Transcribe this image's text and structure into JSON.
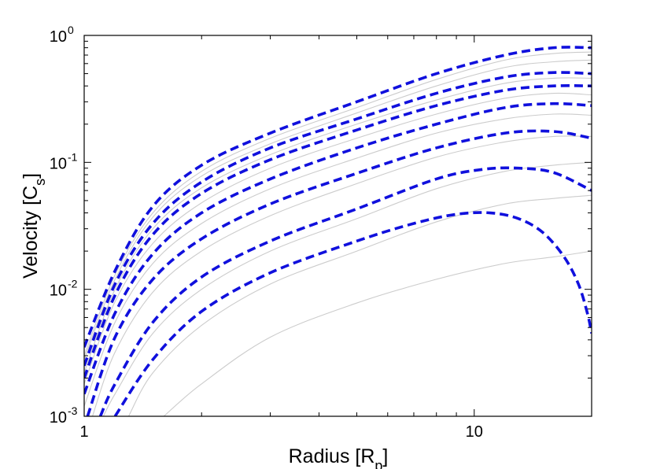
{
  "chart_data": {
    "type": "line",
    "title": "",
    "xlabel": "Radius [R_p]",
    "ylabel": "Velocity [C_s]",
    "xscale": "log",
    "yscale": "log",
    "xlim": [
      1,
      20
    ],
    "ylim": [
      0.001,
      1
    ],
    "grid": false,
    "x_ticks": [
      {
        "value": 1,
        "label": "1"
      },
      {
        "value": 10,
        "label": "10"
      }
    ],
    "y_ticks": [
      {
        "value": 0.001,
        "base": "10",
        "exp": "-3"
      },
      {
        "value": 0.01,
        "base": "10",
        "exp": "-2"
      },
      {
        "value": 0.1,
        "base": "10",
        "exp": "-1"
      },
      {
        "value": 1,
        "base": "10",
        "exp": "0"
      }
    ],
    "colors": {
      "dashed": "#1010dd",
      "background_curves": "#cccccc"
    },
    "dashed_series": [
      {
        "x": [
          1,
          1.2,
          1.5,
          2,
          3,
          5,
          8,
          12,
          16,
          20
        ],
        "y": [
          0.0035,
          0.014,
          0.045,
          0.095,
          0.17,
          0.3,
          0.5,
          0.7,
          0.8,
          0.8
        ]
      },
      {
        "x": [
          1,
          1.2,
          1.5,
          2,
          3,
          5,
          8,
          12,
          16,
          20
        ],
        "y": [
          0.0025,
          0.011,
          0.033,
          0.07,
          0.13,
          0.22,
          0.35,
          0.47,
          0.51,
          0.5
        ]
      },
      {
        "x": [
          1,
          1.2,
          1.5,
          2,
          3,
          5,
          8,
          12,
          16,
          20
        ],
        "y": [
          0.002,
          0.009,
          0.027,
          0.057,
          0.105,
          0.18,
          0.28,
          0.37,
          0.4,
          0.4
        ]
      },
      {
        "x": [
          1,
          1.2,
          1.5,
          2,
          3,
          5,
          8,
          12,
          16,
          20
        ],
        "y": [
          0.0015,
          0.0065,
          0.019,
          0.04,
          0.074,
          0.13,
          0.2,
          0.27,
          0.29,
          0.28
        ]
      },
      {
        "x": [
          1.02,
          1.2,
          1.5,
          2,
          3,
          5,
          8,
          12,
          16,
          20
        ],
        "y": [
          0.001,
          0.0042,
          0.012,
          0.025,
          0.047,
          0.082,
          0.13,
          0.17,
          0.175,
          0.155
        ]
      },
      {
        "x": [
          1.1,
          1.2,
          1.5,
          2,
          3,
          5,
          8,
          10.5,
          13,
          16,
          20
        ],
        "y": [
          0.001,
          0.0018,
          0.0055,
          0.0125,
          0.024,
          0.043,
          0.074,
          0.088,
          0.09,
          0.083,
          0.06
        ]
      },
      {
        "x": [
          1.2,
          1.5,
          2,
          3,
          5,
          7,
          9,
          11,
          13,
          15,
          17,
          18.5,
          19.5,
          20
        ],
        "y": [
          0.001,
          0.0028,
          0.0067,
          0.0135,
          0.024,
          0.033,
          0.039,
          0.04,
          0.036,
          0.028,
          0.018,
          0.011,
          0.0065,
          0.0045
        ]
      }
    ],
    "background_series": [
      {
        "x": [
          1,
          1.2,
          1.5,
          2,
          3,
          5,
          8,
          12,
          16,
          20
        ],
        "y": [
          0.003,
          0.013,
          0.04,
          0.085,
          0.155,
          0.27,
          0.45,
          0.64,
          0.72,
          0.74
        ]
      },
      {
        "x": [
          1,
          1.2,
          1.5,
          2,
          3,
          5,
          8,
          12,
          16,
          20
        ],
        "y": [
          0.0028,
          0.012,
          0.037,
          0.078,
          0.14,
          0.245,
          0.4,
          0.56,
          0.62,
          0.64
        ]
      },
      {
        "x": [
          1,
          1.2,
          1.5,
          2,
          3,
          5,
          8,
          12,
          16,
          20
        ],
        "y": [
          0.0022,
          0.01,
          0.03,
          0.063,
          0.115,
          0.2,
          0.31,
          0.42,
          0.46,
          0.46
        ]
      },
      {
        "x": [
          1,
          1.2,
          1.5,
          2,
          3,
          5,
          8,
          12,
          16,
          20
        ],
        "y": [
          0.0018,
          0.008,
          0.023,
          0.048,
          0.09,
          0.155,
          0.24,
          0.32,
          0.35,
          0.34
        ]
      },
      {
        "x": [
          1,
          1.2,
          1.5,
          2,
          3,
          5,
          8,
          12,
          16,
          20
        ],
        "y": [
          0.0012,
          0.0055,
          0.016,
          0.033,
          0.062,
          0.108,
          0.17,
          0.22,
          0.24,
          0.235
        ]
      },
      {
        "x": [
          1.05,
          1.2,
          1.5,
          2,
          3,
          5,
          8,
          12,
          16,
          20
        ],
        "y": [
          0.001,
          0.0032,
          0.0095,
          0.02,
          0.038,
          0.068,
          0.11,
          0.145,
          0.16,
          0.16
        ]
      },
      {
        "x": [
          1.12,
          1.2,
          1.5,
          2,
          3,
          5,
          8,
          12,
          16,
          20
        ],
        "y": [
          0.001,
          0.0015,
          0.0045,
          0.01,
          0.02,
          0.036,
          0.062,
          0.085,
          0.095,
          0.1
        ]
      },
      {
        "x": [
          1.3,
          1.5,
          2,
          3,
          5,
          8,
          12,
          16,
          20
        ],
        "y": [
          0.001,
          0.0022,
          0.0052,
          0.011,
          0.02,
          0.034,
          0.047,
          0.052,
          0.055
        ]
      },
      {
        "x": [
          1.6,
          2,
          3,
          5,
          8,
          12,
          16,
          20
        ],
        "y": [
          0.001,
          0.0018,
          0.0042,
          0.0078,
          0.012,
          0.016,
          0.018,
          0.02
        ]
      }
    ]
  }
}
